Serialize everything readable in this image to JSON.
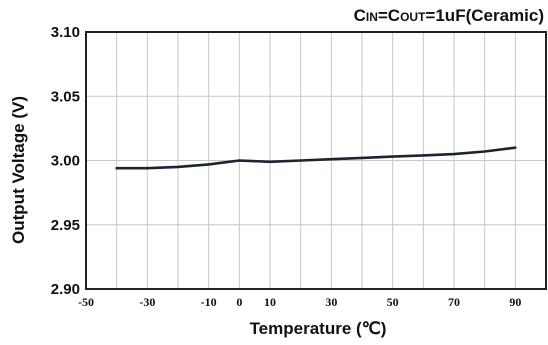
{
  "chart_data": {
    "type": "line",
    "title": "",
    "condition": {
      "c1_letter": "C",
      "c1_sub": "IN",
      "eq1": "=",
      "c2_letter": "C",
      "c2_sub": "OUT",
      "value": "=1uF(Ceramic)"
    },
    "xlabel": "Temperature (℃)",
    "ylabel": "Output Voltage (V)",
    "xlim": [
      -50,
      100
    ],
    "ylim": [
      2.9,
      3.1
    ],
    "xticks": [
      -50,
      -30,
      -10,
      0,
      10,
      30,
      50,
      70,
      90
    ],
    "xtick_labels": [
      "-50",
      "-30",
      "-10",
      "0",
      "10",
      "30",
      "50",
      "70",
      "90"
    ],
    "yticks": [
      2.9,
      2.95,
      3.0,
      3.05,
      3.1
    ],
    "ytick_labels": [
      "2.90",
      "2.95",
      "3.00",
      "3.05",
      "3.10"
    ],
    "x_gridlines": [
      -50,
      -40,
      -30,
      -20,
      -10,
      0,
      10,
      20,
      30,
      40,
      50,
      60,
      70,
      80,
      90,
      100
    ],
    "grid": true,
    "series": [
      {
        "color": "#1a2433",
        "x": [
          -40,
          -30,
          -20,
          -10,
          0,
          10,
          20,
          30,
          40,
          50,
          60,
          70,
          80,
          90
        ],
        "y": [
          2.994,
          2.994,
          2.995,
          2.997,
          3.0,
          2.999,
          3.0,
          3.001,
          3.002,
          3.003,
          3.004,
          3.005,
          3.007,
          3.01
        ]
      }
    ]
  }
}
